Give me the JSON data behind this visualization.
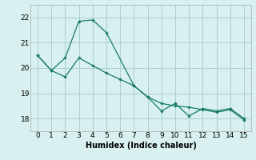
{
  "xlabel": "Humidex (Indice chaleur)",
  "line_color": "#1a7a6a",
  "bg_color": "#d8f0f0",
  "grid_color": "#a8d0d0",
  "ylim": [
    17.5,
    22.5
  ],
  "xlim": [
    -0.5,
    15.5
  ],
  "yticks": [
    18,
    19,
    20,
    21,
    22
  ],
  "xticks": [
    0,
    1,
    2,
    3,
    4,
    5,
    6,
    7,
    8,
    9,
    10,
    11,
    12,
    13,
    14,
    15
  ],
  "curve1_x": [
    0,
    1,
    2,
    3,
    4,
    5,
    7,
    8,
    9,
    10,
    11,
    12,
    13,
    14,
    15
  ],
  "curve1_y": [
    20.5,
    19.9,
    20.4,
    21.85,
    21.9,
    21.4,
    19.3,
    18.85,
    18.3,
    18.6,
    18.1,
    18.4,
    18.3,
    18.4,
    18.0
  ],
  "curve2_x": [
    0,
    1,
    2,
    3,
    4,
    5,
    6,
    7,
    8,
    9,
    10,
    11,
    12,
    13,
    14,
    15
  ],
  "curve2_y": [
    20.5,
    19.9,
    19.65,
    20.4,
    20.1,
    19.8,
    19.55,
    19.3,
    18.85,
    18.6,
    18.5,
    18.45,
    18.35,
    18.25,
    18.35,
    17.95
  ]
}
